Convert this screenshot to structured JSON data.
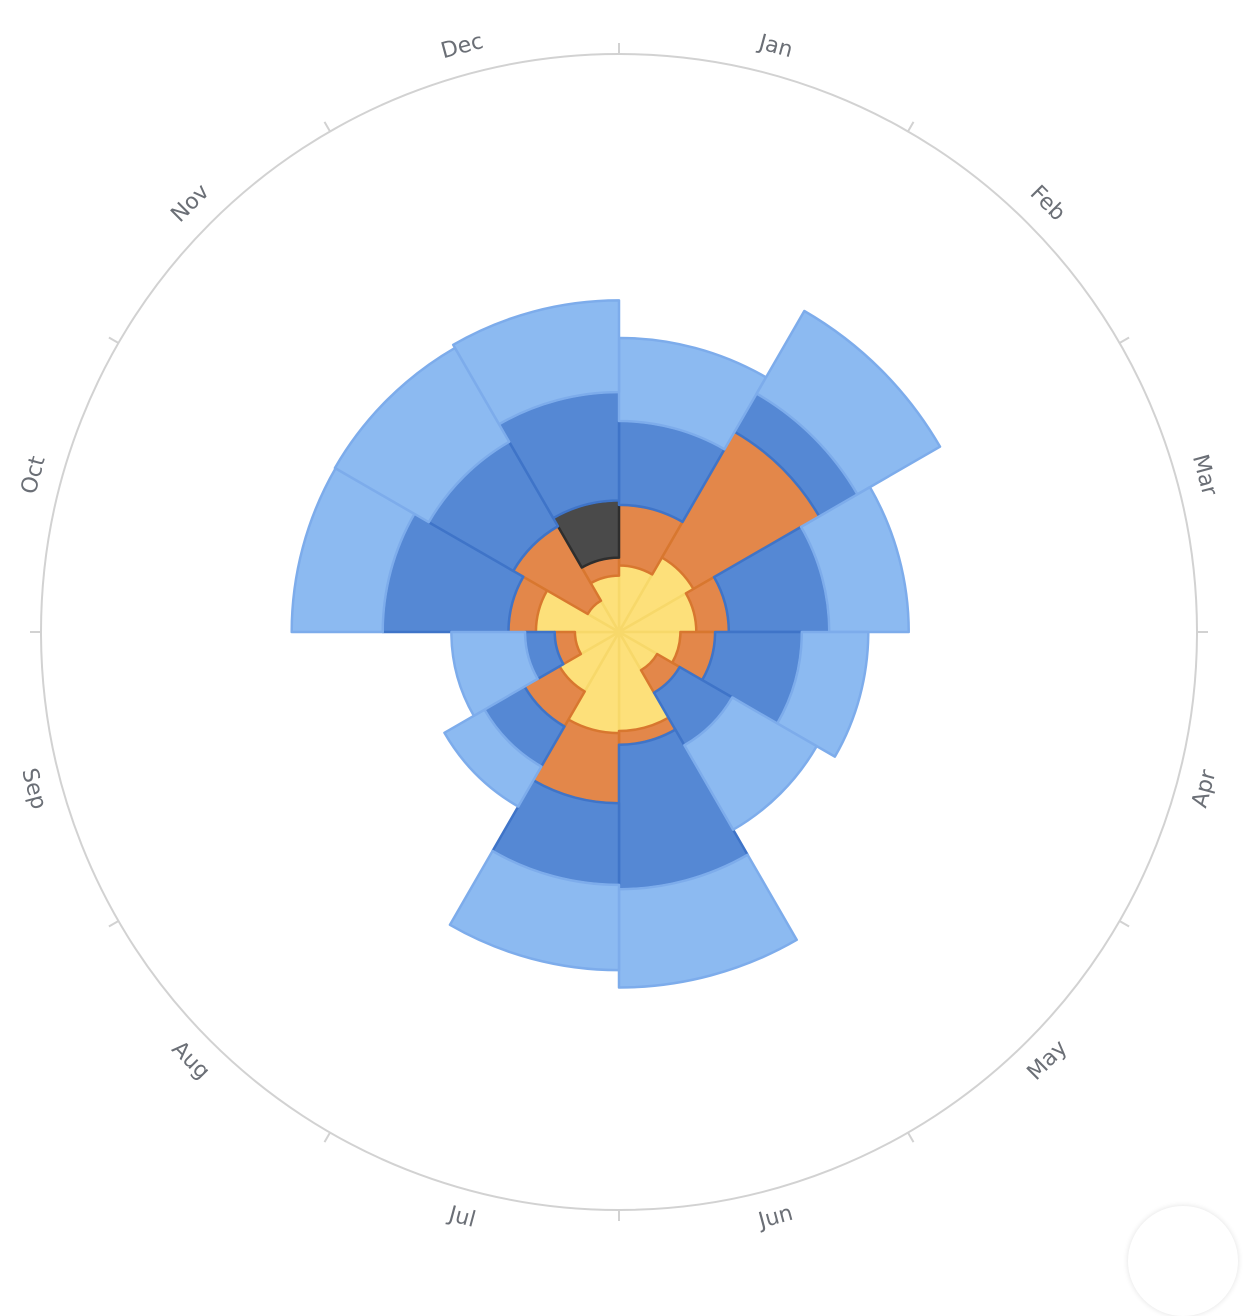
{
  "chart_data": {
    "type": "polar-bar",
    "title": "",
    "categories": [
      "Jan",
      "Feb",
      "Mar",
      "Apr",
      "May",
      "Jun",
      "Jul",
      "Aug",
      "Sep",
      "Oct",
      "Nov",
      "Dec"
    ],
    "series": [
      {
        "color": "#fde07a",
        "stroke": "#f7d86a",
        "values": [
          9.2,
          11.9,
          10.7,
          8.5,
          6.1,
          13.7,
          14.0,
          9.5,
          6.1,
          11.5,
          5.0,
          7.8
        ]
      },
      {
        "color": "#e3874a",
        "stroke": "#d8772f",
        "values": [
          8.4,
          20.1,
          4.5,
          4.8,
          3.6,
          1.9,
          9.7,
          5.6,
          2.8,
          3.8,
          11.9,
          2.5
        ]
      },
      {
        "color": "#4a4a4a",
        "stroke": "#2e2e2e",
        "values": [
          0,
          0,
          0,
          0,
          0,
          0,
          0,
          0,
          0,
          0,
          0,
          7.9
        ]
      },
      {
        "color": "#5588d4",
        "stroke": "#3f74c8",
        "values": [
          11.6,
          6.1,
          13.9,
          12.0,
          8.4,
          20.0,
          11.3,
          6.4,
          4.1,
          17.4,
          13.5,
          15.0
        ]
      },
      {
        "color": "#8cbaf1",
        "stroke": "#7daceb",
        "values": [
          11.5,
          13.2,
          11.0,
          9.2,
          13.5,
          13.6,
          11.8,
          6.4,
          10.2,
          12.6,
          15.0,
          12.7
        ]
      }
    ],
    "stacked": true,
    "radial_max": 80,
    "start_angle_deg": 0,
    "direction": "clockwise",
    "grid": false,
    "legend": "none"
  }
}
